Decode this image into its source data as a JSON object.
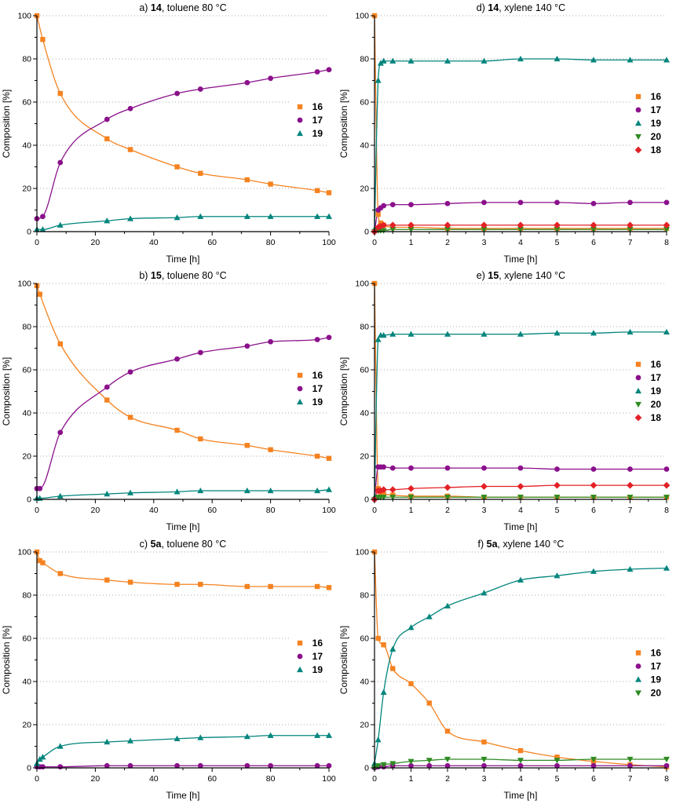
{
  "figure": {
    "xlabel": "Time [h]",
    "ylabel": "Composition [%]",
    "grid_style": "dotted-horizontal",
    "colors": {
      "series16": "#F58220",
      "series17": "#8B108B",
      "series19": "#00857C",
      "series20": "#2E8B22",
      "series18": "#E32025",
      "axis": "#000000",
      "grid": "#aaaaaa"
    }
  },
  "chart_data": [
    {
      "id": "a",
      "type": "scatter",
      "title_prefix": "a) ",
      "compound": "14",
      "title_suffix": ", toluene 80 °C",
      "xlabel": "Time [h]",
      "ylabel": "Composition [%]",
      "xlim": [
        0,
        100
      ],
      "xticks": [
        0,
        20,
        40,
        60,
        80,
        100
      ],
      "xminor": 10,
      "ylim": [
        0,
        100
      ],
      "yticks": [
        0,
        20,
        40,
        60,
        80,
        100
      ],
      "yminor": 10,
      "grid_y": [
        20,
        40,
        60,
        80,
        100
      ],
      "legend_position": "right-center",
      "legend_top": "45%",
      "x": [
        0,
        2,
        8,
        24,
        32,
        48,
        56,
        72,
        80,
        96,
        100
      ],
      "series": [
        {
          "name": "16",
          "marker": "square",
          "color": "#F58220",
          "y": [
            100,
            89,
            64,
            43,
            38,
            30,
            27,
            24,
            22,
            19,
            18
          ]
        },
        {
          "name": "17",
          "marker": "circle",
          "color": "#8B108B",
          "y": [
            6,
            7,
            32,
            52,
            57,
            64,
            66,
            69,
            71,
            74,
            75
          ]
        },
        {
          "name": "19",
          "marker": "triangle-up",
          "color": "#00857C",
          "y": [
            1,
            1,
            3,
            5,
            6,
            6.5,
            7,
            7,
            7,
            7,
            7
          ]
        }
      ]
    },
    {
      "id": "b",
      "type": "scatter",
      "title_prefix": "b) ",
      "compound": "15",
      "title_suffix": ", toluene 80 °C",
      "xlabel": "Time [h]",
      "ylabel": "Composition [%]",
      "xlim": [
        0,
        100
      ],
      "xticks": [
        0,
        20,
        40,
        60,
        80,
        100
      ],
      "xminor": 10,
      "ylim": [
        0,
        100
      ],
      "yticks": [
        0,
        20,
        40,
        60,
        80,
        100
      ],
      "yminor": 10,
      "grid_y": [
        20,
        40,
        60,
        80,
        100
      ],
      "legend_position": "right-center",
      "legend_top": "45%",
      "x": [
        0,
        1,
        8,
        24,
        32,
        48,
        56,
        72,
        80,
        96,
        100
      ],
      "series": [
        {
          "name": "16",
          "marker": "square",
          "color": "#F58220",
          "y": [
            99,
            95,
            72,
            46,
            38,
            32,
            28,
            25,
            23,
            20,
            19
          ]
        },
        {
          "name": "17",
          "marker": "circle",
          "color": "#8B108B",
          "y": [
            5,
            5,
            31,
            52,
            59,
            65,
            68,
            71,
            73,
            74,
            75
          ]
        },
        {
          "name": "19",
          "marker": "triangle-up",
          "color": "#00857C",
          "y": [
            0.5,
            0.5,
            1.5,
            2.5,
            3,
            3.5,
            4,
            4,
            4,
            4,
            4.5
          ]
        }
      ]
    },
    {
      "id": "c",
      "type": "scatter",
      "title_prefix": "c) ",
      "compound": "5a",
      "title_suffix": ", toluene 80 °C",
      "xlabel": "Time [h]",
      "ylabel": "Composition [%]",
      "xlim": [
        0,
        100
      ],
      "xticks": [
        0,
        20,
        40,
        60,
        80,
        100
      ],
      "xminor": 10,
      "ylim": [
        0,
        100
      ],
      "yticks": [
        0,
        20,
        40,
        60,
        80,
        100
      ],
      "yminor": 10,
      "grid_y": [
        20,
        40,
        60,
        80,
        100
      ],
      "legend_position": "right-center",
      "legend_top": "45%",
      "x": [
        0,
        1,
        2,
        8,
        24,
        32,
        48,
        56,
        72,
        80,
        96,
        100
      ],
      "series": [
        {
          "name": "16",
          "marker": "square",
          "color": "#F58220",
          "y": [
            100,
            96,
            95,
            90,
            87,
            86,
            85,
            85,
            84,
            84,
            84,
            83.5
          ]
        },
        {
          "name": "17",
          "marker": "circle",
          "color": "#8B108B",
          "y": [
            0.5,
            0.5,
            0.5,
            0.5,
            1,
            1,
            1,
            1,
            1,
            1,
            1,
            1
          ]
        },
        {
          "name": "19",
          "marker": "triangle-up",
          "color": "#00857C",
          "y": [
            2,
            4,
            5,
            10,
            12,
            12.5,
            13.5,
            14,
            14.5,
            15,
            15,
            15
          ]
        }
      ]
    },
    {
      "id": "d",
      "type": "scatter",
      "title_prefix": "d) ",
      "compound": "14",
      "title_suffix": ", xylene 140 °C",
      "xlabel": "Time [h]",
      "ylabel": "Composition [%]",
      "xlim": [
        0,
        8
      ],
      "xticks": [
        0,
        1,
        2,
        3,
        4,
        5,
        6,
        7,
        8
      ],
      "xminor": 0.5,
      "ylim": [
        0,
        100
      ],
      "yticks": [
        0,
        20,
        40,
        60,
        80,
        100
      ],
      "yminor": 10,
      "grid_y": [
        20,
        40,
        60,
        80,
        100
      ],
      "legend_position": "right-center",
      "legend_top": "46%",
      "x": [
        0,
        0.1,
        0.17,
        0.25,
        0.5,
        1,
        2,
        3,
        4,
        5,
        6,
        7,
        8
      ],
      "series": [
        {
          "name": "16",
          "marker": "square",
          "color": "#F58220",
          "y": [
            100,
            8,
            4,
            3,
            2,
            2,
            1.5,
            1.5,
            1.5,
            1.5,
            1.5,
            1.5,
            1.5
          ]
        },
        {
          "name": "17",
          "marker": "circle",
          "color": "#8B108B",
          "y": [
            0,
            10,
            11,
            12,
            12.5,
            12.5,
            13,
            13.5,
            13.5,
            13.5,
            13,
            13.5,
            13.5
          ]
        },
        {
          "name": "19",
          "marker": "triangle-up",
          "color": "#00857C",
          "y": [
            1,
            70,
            78,
            79,
            79,
            79,
            79,
            79,
            80,
            80,
            79.5,
            79.5,
            79.5
          ]
        },
        {
          "name": "20",
          "marker": "triangle-down",
          "color": "#2E8B22",
          "y": [
            0,
            0.5,
            0.5,
            0.5,
            1,
            1,
            1,
            1,
            1,
            1,
            1,
            1,
            1
          ]
        },
        {
          "name": "18",
          "marker": "diamond",
          "color": "#E32025",
          "y": [
            0,
            2,
            2.5,
            3,
            3,
            3,
            3,
            3,
            3,
            3,
            3,
            3,
            3
          ]
        }
      ]
    },
    {
      "id": "e",
      "type": "scatter",
      "title_prefix": "e) ",
      "compound": "15",
      "title_suffix": ", xylene 140 °C",
      "xlabel": "Time [h]",
      "ylabel": "Composition [%]",
      "xlim": [
        0,
        8
      ],
      "xticks": [
        0,
        1,
        2,
        3,
        4,
        5,
        6,
        7,
        8
      ],
      "xminor": 0.5,
      "ylim": [
        0,
        100
      ],
      "yticks": [
        0,
        20,
        40,
        60,
        80,
        100
      ],
      "yminor": 10,
      "grid_y": [
        20,
        40,
        60,
        80,
        100
      ],
      "legend_position": "right-center",
      "legend_top": "46%",
      "x": [
        0,
        0.1,
        0.17,
        0.25,
        0.5,
        1,
        2,
        3,
        4,
        5,
        6,
        7,
        8
      ],
      "series": [
        {
          "name": "16",
          "marker": "square",
          "color": "#F58220",
          "y": [
            100,
            5,
            3,
            2.5,
            2,
            1.5,
            1.5,
            1,
            1,
            1,
            1,
            1,
            1
          ]
        },
        {
          "name": "17",
          "marker": "circle",
          "color": "#8B108B",
          "y": [
            0,
            15,
            15,
            15,
            14.5,
            14.5,
            14.5,
            14.5,
            14.5,
            14,
            14,
            14,
            14
          ]
        },
        {
          "name": "19",
          "marker": "triangle-up",
          "color": "#00857C",
          "y": [
            1,
            74,
            76,
            76,
            76.5,
            76.5,
            76.5,
            76.5,
            76.5,
            77,
            77,
            77.5,
            77.5
          ]
        },
        {
          "name": "20",
          "marker": "triangle-down",
          "color": "#2E8B22",
          "y": [
            0,
            1,
            1,
            1,
            1,
            1,
            1,
            1,
            1,
            1,
            1,
            1,
            1
          ]
        },
        {
          "name": "18",
          "marker": "diamond",
          "color": "#E32025",
          "y": [
            0,
            4,
            4,
            4.5,
            4.5,
            5,
            5.5,
            6,
            6,
            6.5,
            6.5,
            6.5,
            6.5
          ]
        }
      ]
    },
    {
      "id": "f",
      "type": "scatter",
      "title_prefix": "f) ",
      "compound": "5a",
      "title_suffix": ", xylene 140 °C",
      "xlabel": "Time [h]",
      "ylabel": "Composition [%]",
      "xlim": [
        0,
        8
      ],
      "xticks": [
        0,
        1,
        2,
        3,
        4,
        5,
        6,
        7,
        8
      ],
      "xminor": 0.5,
      "ylim": [
        0,
        100
      ],
      "yticks": [
        0,
        20,
        40,
        60,
        80,
        100
      ],
      "yminor": 10,
      "grid_y": [
        20,
        40,
        60,
        80,
        100
      ],
      "legend_position": "right-center",
      "legend_top": "51%",
      "x": [
        0,
        0.1,
        0.25,
        0.5,
        1,
        1.5,
        2,
        3,
        4,
        5,
        6,
        7,
        8
      ],
      "series": [
        {
          "name": "16",
          "marker": "square",
          "color": "#F58220",
          "y": [
            100,
            60,
            57,
            46,
            39,
            30,
            17,
            12,
            8,
            5,
            3,
            1.5,
            0.5
          ]
        },
        {
          "name": "17",
          "marker": "circle",
          "color": "#8B108B",
          "y": [
            0,
            0.5,
            0.5,
            1,
            1,
            1,
            1,
            1,
            1,
            1,
            1,
            1,
            1
          ]
        },
        {
          "name": "19",
          "marker": "triangle-up",
          "color": "#00857C",
          "y": [
            2,
            13,
            35,
            55,
            65,
            70,
            75,
            81,
            87,
            89,
            91,
            92,
            92.5
          ]
        },
        {
          "name": "20",
          "marker": "triangle-down",
          "color": "#2E8B22",
          "y": [
            0,
            1,
            1.5,
            2,
            3,
            3.5,
            4,
            4,
            3.5,
            3.5,
            4,
            4,
            4
          ]
        }
      ]
    }
  ]
}
